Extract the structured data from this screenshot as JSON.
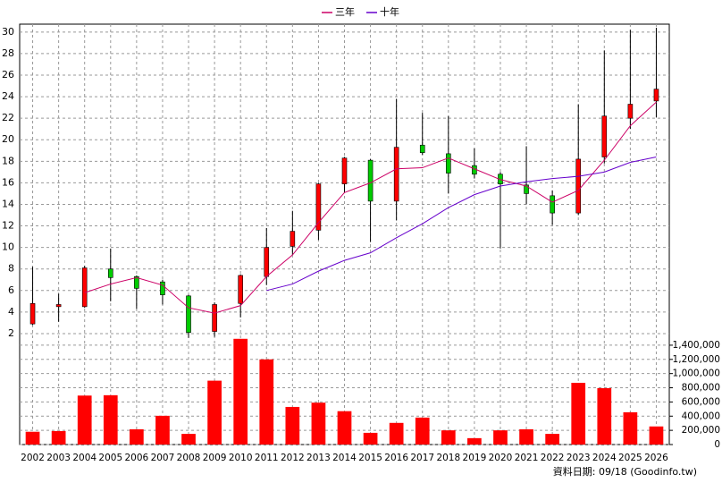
{
  "chart_data": {
    "type": "candlestick",
    "categories": [
      "2002",
      "2003",
      "2004",
      "2005",
      "2006",
      "2007",
      "2008",
      "2009",
      "2010",
      "2011",
      "2012",
      "2013",
      "2014",
      "2015",
      "2016",
      "2017",
      "2018",
      "2019",
      "2020",
      "2021",
      "2022",
      "2023",
      "2024",
      "2025",
      "2026"
    ],
    "candles": {
      "open": [
        2.9,
        4.5,
        4.5,
        8.0,
        7.3,
        6.8,
        5.5,
        2.2,
        4.8,
        7.3,
        10.1,
        11.6,
        15.9,
        18.1,
        14.3,
        19.5,
        18.7,
        17.6,
        16.8,
        15.8,
        14.8,
        13.2,
        18.4,
        22.0,
        23.6
      ],
      "high": [
        8.2,
        5.7,
        8.3,
        9.9,
        7.4,
        7.0,
        5.6,
        4.9,
        7.5,
        11.8,
        13.4,
        16.0,
        18.4,
        18.2,
        23.8,
        22.5,
        22.2,
        19.2,
        17.0,
        19.4,
        15.3,
        23.3,
        28.3,
        30.2,
        30.4
      ],
      "low": [
        2.8,
        3.1,
        4.4,
        5.0,
        4.3,
        4.7,
        1.6,
        1.7,
        3.5,
        6.5,
        9.3,
        10.7,
        15.1,
        10.5,
        12.5,
        18.6,
        15.0,
        16.4,
        9.9,
        14.0,
        12.1,
        13.0,
        17.8,
        21.0,
        22.1
      ],
      "close": [
        4.8,
        4.7,
        8.1,
        7.2,
        6.2,
        5.6,
        2.1,
        4.7,
        7.4,
        10.0,
        11.5,
        15.9,
        18.3,
        14.3,
        19.3,
        18.8,
        16.9,
        16.8,
        15.9,
        15.0,
        13.2,
        18.2,
        22.2,
        23.3,
        24.7
      ],
      "up_color": "#ff0000",
      "down_color": "#00cc00"
    },
    "series": [
      {
        "name": "三年",
        "color": "#cc0066",
        "values": [
          null,
          null,
          5.8,
          6.6,
          7.2,
          6.5,
          4.4,
          3.9,
          4.6,
          7.3,
          9.3,
          12.3,
          15.1,
          16.0,
          17.3,
          17.4,
          18.3,
          17.3,
          16.3,
          15.7,
          14.2,
          15.3,
          18.1,
          21.3,
          23.5
        ]
      },
      {
        "name": "十年",
        "color": "#6600cc",
        "values": [
          null,
          null,
          null,
          null,
          null,
          null,
          null,
          null,
          null,
          6.0,
          6.6,
          7.8,
          8.8,
          9.5,
          10.9,
          12.2,
          13.7,
          14.9,
          15.7,
          16.1,
          16.4,
          16.6,
          17.0,
          17.9,
          18.4
        ]
      }
    ],
    "volume": {
      "color": "#ff0000",
      "axis": "y2",
      "values": [
        180000,
        190000,
        690000,
        695000,
        215000,
        405000,
        150000,
        900000,
        1490000,
        1200000,
        530000,
        590000,
        470000,
        165000,
        305000,
        380000,
        200000,
        90000,
        200000,
        215000,
        150000,
        870000,
        795000,
        455000,
        255000
      ]
    },
    "ylim": [
      1.2,
      30.8
    ],
    "yticks": [
      2,
      4,
      6,
      8,
      10,
      12,
      14,
      16,
      18,
      20,
      22,
      24,
      26,
      28,
      30
    ],
    "y2lim": [
      0,
      1500000
    ],
    "y2ticks": [
      0,
      {
        "value": 200000,
        "label": "200,000"
      },
      {
        "value": 400000,
        "label": "400,000"
      },
      {
        "value": 600000,
        "label": "600,000"
      },
      {
        "value": 800000,
        "label": "800,000"
      },
      {
        "value": 1000000,
        "label": "1,000,000"
      },
      {
        "value": 1200000,
        "label": "1,200,000"
      },
      {
        "value": 1400000,
        "label": "1,400,000"
      }
    ],
    "grid": true,
    "footer": "資料日期: 09/18 (Goodinfo.tw)"
  }
}
